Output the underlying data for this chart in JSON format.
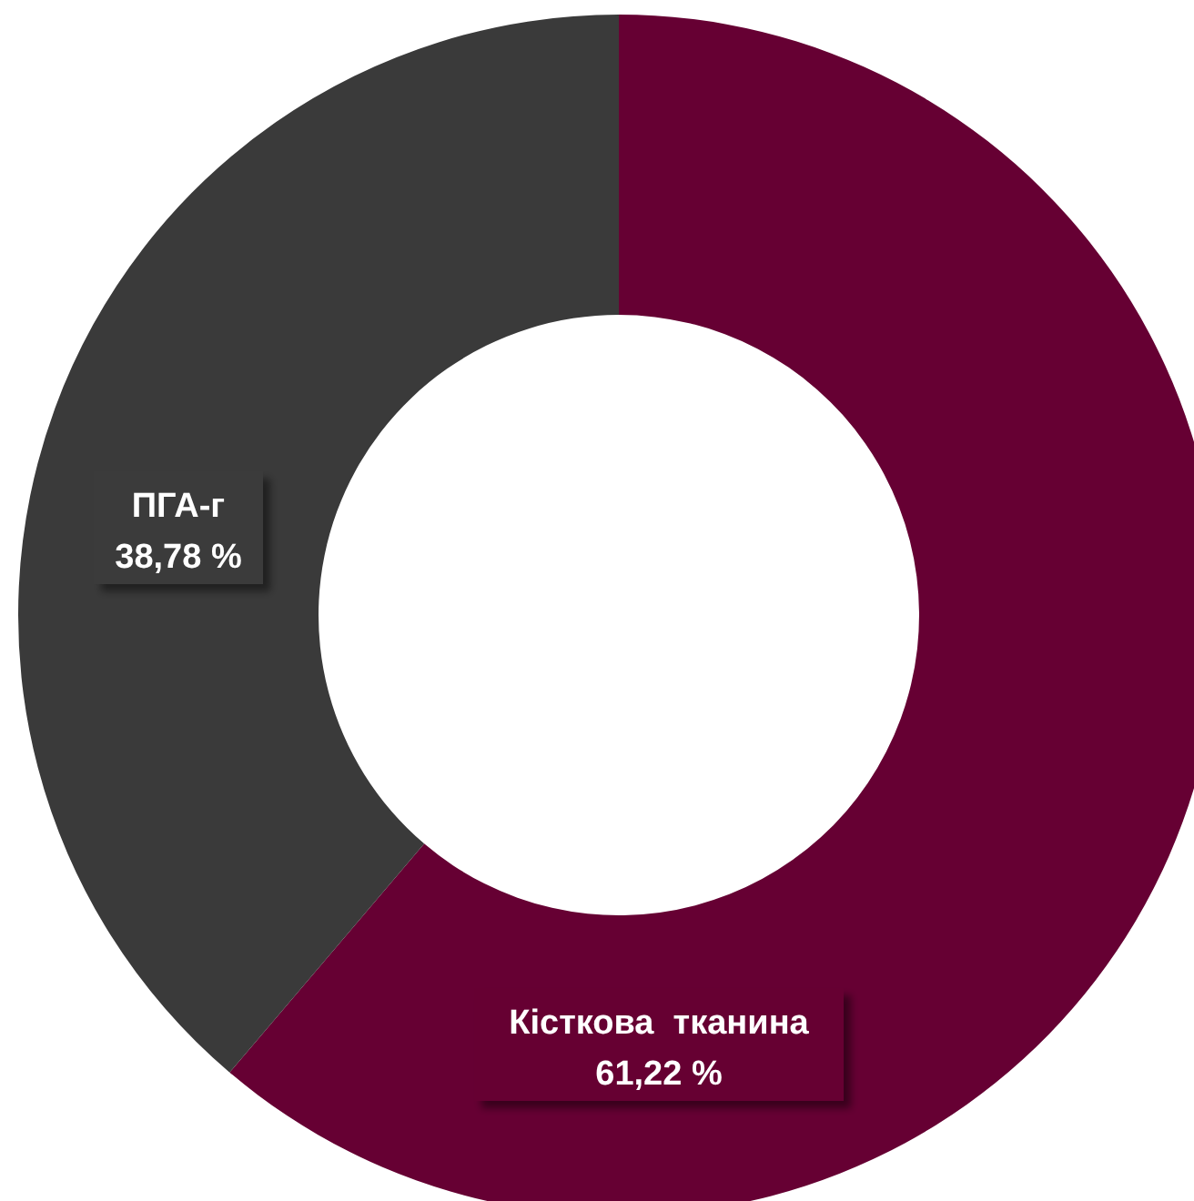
{
  "chart_data": {
    "type": "donut",
    "categories": [
      "Кісткова  тканина",
      "ПГА-г"
    ],
    "values": [
      61.22,
      38.78
    ],
    "colors": [
      "#660033",
      "#3a3a3a"
    ],
    "value_labels": [
      "61,22 %",
      "38,78 %"
    ]
  }
}
